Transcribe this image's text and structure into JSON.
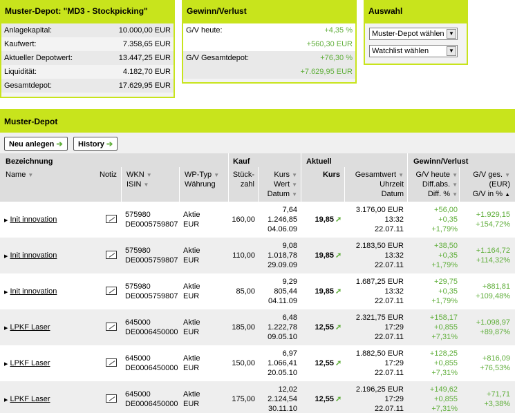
{
  "depot_summary": {
    "title": "Muster-Depot: \"MD3 - Stockpicking\"",
    "rows": [
      {
        "label": "Anlagekapital:",
        "value": "10.000,00 EUR"
      },
      {
        "label": "Kaufwert:",
        "value": "7.358,65 EUR"
      },
      {
        "label": "Aktueller Depotwert:",
        "value": "13.447,25 EUR"
      },
      {
        "label": "Liquidität:",
        "value": "4.182,70 EUR"
      },
      {
        "label": "Gesamtdepot:",
        "value": "17.629,95 EUR"
      }
    ]
  },
  "gv_panel": {
    "title": "Gewinn/Verlust",
    "today_label": "G/V heute:",
    "today_pct": "+4,35 %",
    "today_abs": "+560,30 EUR",
    "total_label": "G/V Gesamtdepot:",
    "total_pct": "+76,30 %",
    "total_abs": "+7.629,95 EUR"
  },
  "auswahl": {
    "title": "Auswahl",
    "select1": "Muster-Depot wählen",
    "select2": "Watchlist wählen"
  },
  "depot_bar_title": "Muster-Depot",
  "buttons": {
    "new": "Neu anlegen",
    "history": "History"
  },
  "header": {
    "bezeichnung": "Bezeichnung",
    "kauf": "Kauf",
    "aktuell": "Aktuell",
    "gewinn": "Gewinn/Verlust",
    "name": "Name",
    "notiz": "Notiz",
    "wkn": "WKN",
    "isin": "ISIN",
    "wptyp": "WP-Typ",
    "waehrung": "Währung",
    "stueck1": "Stück-",
    "stueck2": "zahl",
    "kurs": "Kurs",
    "wert": "Wert",
    "datum": "Datum",
    "akt_kurs": "Kurs",
    "gesamtwert": "Gesamtwert",
    "uhrzeit": "Uhrzeit",
    "akt_datum": "Datum",
    "gv_heute": "G/V heute",
    "diff_abs": "Diff.abs.",
    "diff_pct": "Diff. %",
    "gv_ges": "G/V ges.",
    "eur": "(EUR)",
    "gv_pct": "G/V in %"
  },
  "rows": [
    {
      "name": "Init innovation",
      "wkn": "575980",
      "isin": "DE0005759807",
      "typ": "Aktie",
      "cur": "EUR",
      "stueck": "160,00",
      "kurs": "7,64",
      "wert": "1.246,85",
      "datum": "04.06.09",
      "akt": "19,85",
      "gesamt": "3.176,00 EUR",
      "zeit": "13:32",
      "adatum": "22.07.11",
      "gvh": "+56,00",
      "diffabs": "+0,35",
      "diffpct": "+1,79%",
      "gvges": "+1.929,15",
      "gvpct": "+154,72%"
    },
    {
      "name": "Init innovation",
      "wkn": "575980",
      "isin": "DE0005759807",
      "typ": "Aktie",
      "cur": "EUR",
      "stueck": "110,00",
      "kurs": "9,08",
      "wert": "1.018,78",
      "datum": "29.09.09",
      "akt": "19,85",
      "gesamt": "2.183,50 EUR",
      "zeit": "13:32",
      "adatum": "22.07.11",
      "gvh": "+38,50",
      "diffabs": "+0,35",
      "diffpct": "+1,79%",
      "gvges": "+1.164,72",
      "gvpct": "+114,32%"
    },
    {
      "name": "Init innovation",
      "wkn": "575980",
      "isin": "DE0005759807",
      "typ": "Aktie",
      "cur": "EUR",
      "stueck": "85,00",
      "kurs": "9,29",
      "wert": "805,44",
      "datum": "04.11.09",
      "akt": "19,85",
      "gesamt": "1.687,25 EUR",
      "zeit": "13:32",
      "adatum": "22.07.11",
      "gvh": "+29,75",
      "diffabs": "+0,35",
      "diffpct": "+1,79%",
      "gvges": "+881,81",
      "gvpct": "+109,48%"
    },
    {
      "name": "LPKF Laser",
      "wkn": "645000",
      "isin": "DE0006450000",
      "typ": "Aktie",
      "cur": "EUR",
      "stueck": "185,00",
      "kurs": "6,48",
      "wert": "1.222,78",
      "datum": "09.05.10",
      "akt": "12,55",
      "gesamt": "2.321,75 EUR",
      "zeit": "17:29",
      "adatum": "22.07.11",
      "gvh": "+158,17",
      "diffabs": "+0,855",
      "diffpct": "+7,31%",
      "gvges": "+1.098,97",
      "gvpct": "+89,87%"
    },
    {
      "name": "LPKF Laser",
      "wkn": "645000",
      "isin": "DE0006450000",
      "typ": "Aktie",
      "cur": "EUR",
      "stueck": "150,00",
      "kurs": "6,97",
      "wert": "1.066,41",
      "datum": "20.05.10",
      "akt": "12,55",
      "gesamt": "1.882,50 EUR",
      "zeit": "17:29",
      "adatum": "22.07.11",
      "gvh": "+128,25",
      "diffabs": "+0,855",
      "diffpct": "+7,31%",
      "gvges": "+816,09",
      "gvpct": "+76,53%"
    },
    {
      "name": "LPKF Laser",
      "wkn": "645000",
      "isin": "DE0006450000",
      "typ": "Aktie",
      "cur": "EUR",
      "stueck": "175,00",
      "kurs": "12,02",
      "wert": "2.124,54",
      "datum": "30.11.10",
      "akt": "12,55",
      "gesamt": "2.196,25 EUR",
      "zeit": "17:29",
      "adatum": "22.07.11",
      "gvh": "+149,62",
      "diffabs": "+0,855",
      "diffpct": "+7,31%",
      "gvges": "+71,71",
      "gvpct": "+3,38%"
    }
  ]
}
